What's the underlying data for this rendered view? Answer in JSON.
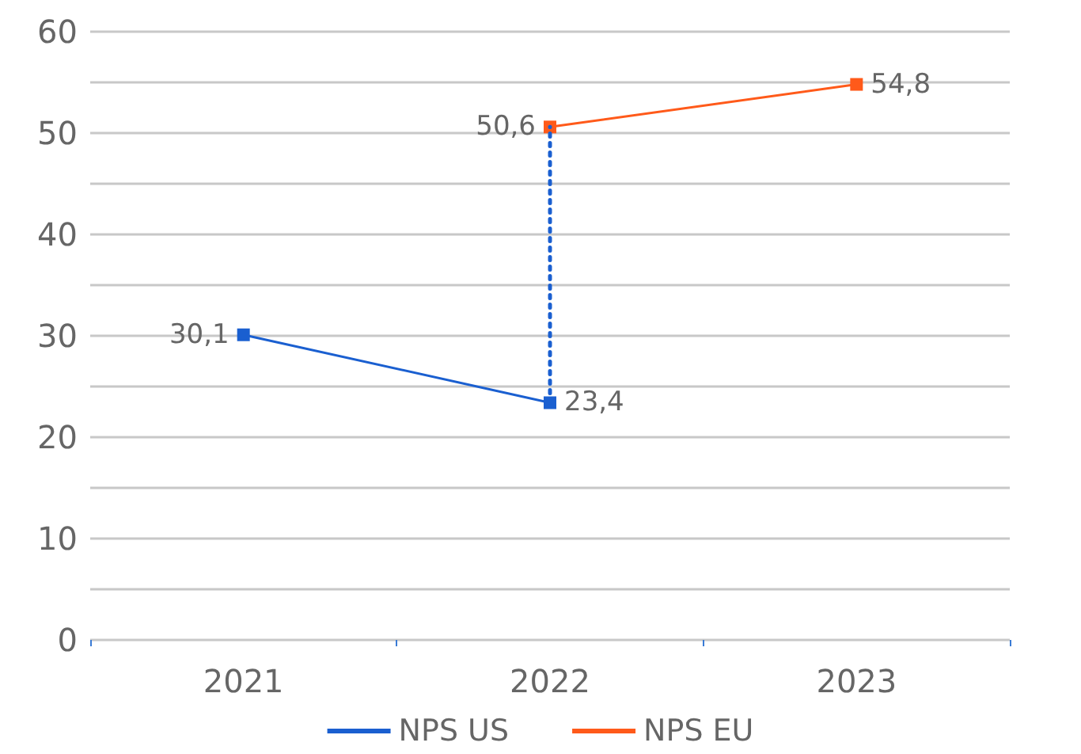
{
  "chart_data": {
    "type": "line",
    "categories": [
      "2021",
      "2022",
      "2023"
    ],
    "series": [
      {
        "name": "NPS US",
        "color": "#1a5fd0",
        "values": [
          30.1,
          23.4,
          null
        ],
        "value_labels": [
          "30,1",
          "23,4",
          null
        ],
        "errors": [
          null,
          [
            23.4,
            50.6
          ],
          null
        ]
      },
      {
        "name": "NPS EU",
        "color": "#ff5a1a",
        "values": [
          null,
          50.6,
          54.8
        ],
        "value_labels": [
          null,
          "50,6",
          "54,8"
        ]
      }
    ],
    "ylim": [
      0,
      60
    ],
    "yticks": [
      0,
      {
        "value": 5,
        "label": null
      },
      10,
      {
        "value": 15,
        "label": null
      },
      20,
      {
        "value": 25,
        "label": null
      },
      30,
      {
        "value": 35,
        "label": null
      },
      40,
      {
        "value": 45,
        "label": null
      },
      50,
      {
        "value": 55,
        "label": null
      },
      60
    ],
    "grid": "y",
    "legend": "bottom",
    "marker": "square",
    "line_style": "solid"
  }
}
